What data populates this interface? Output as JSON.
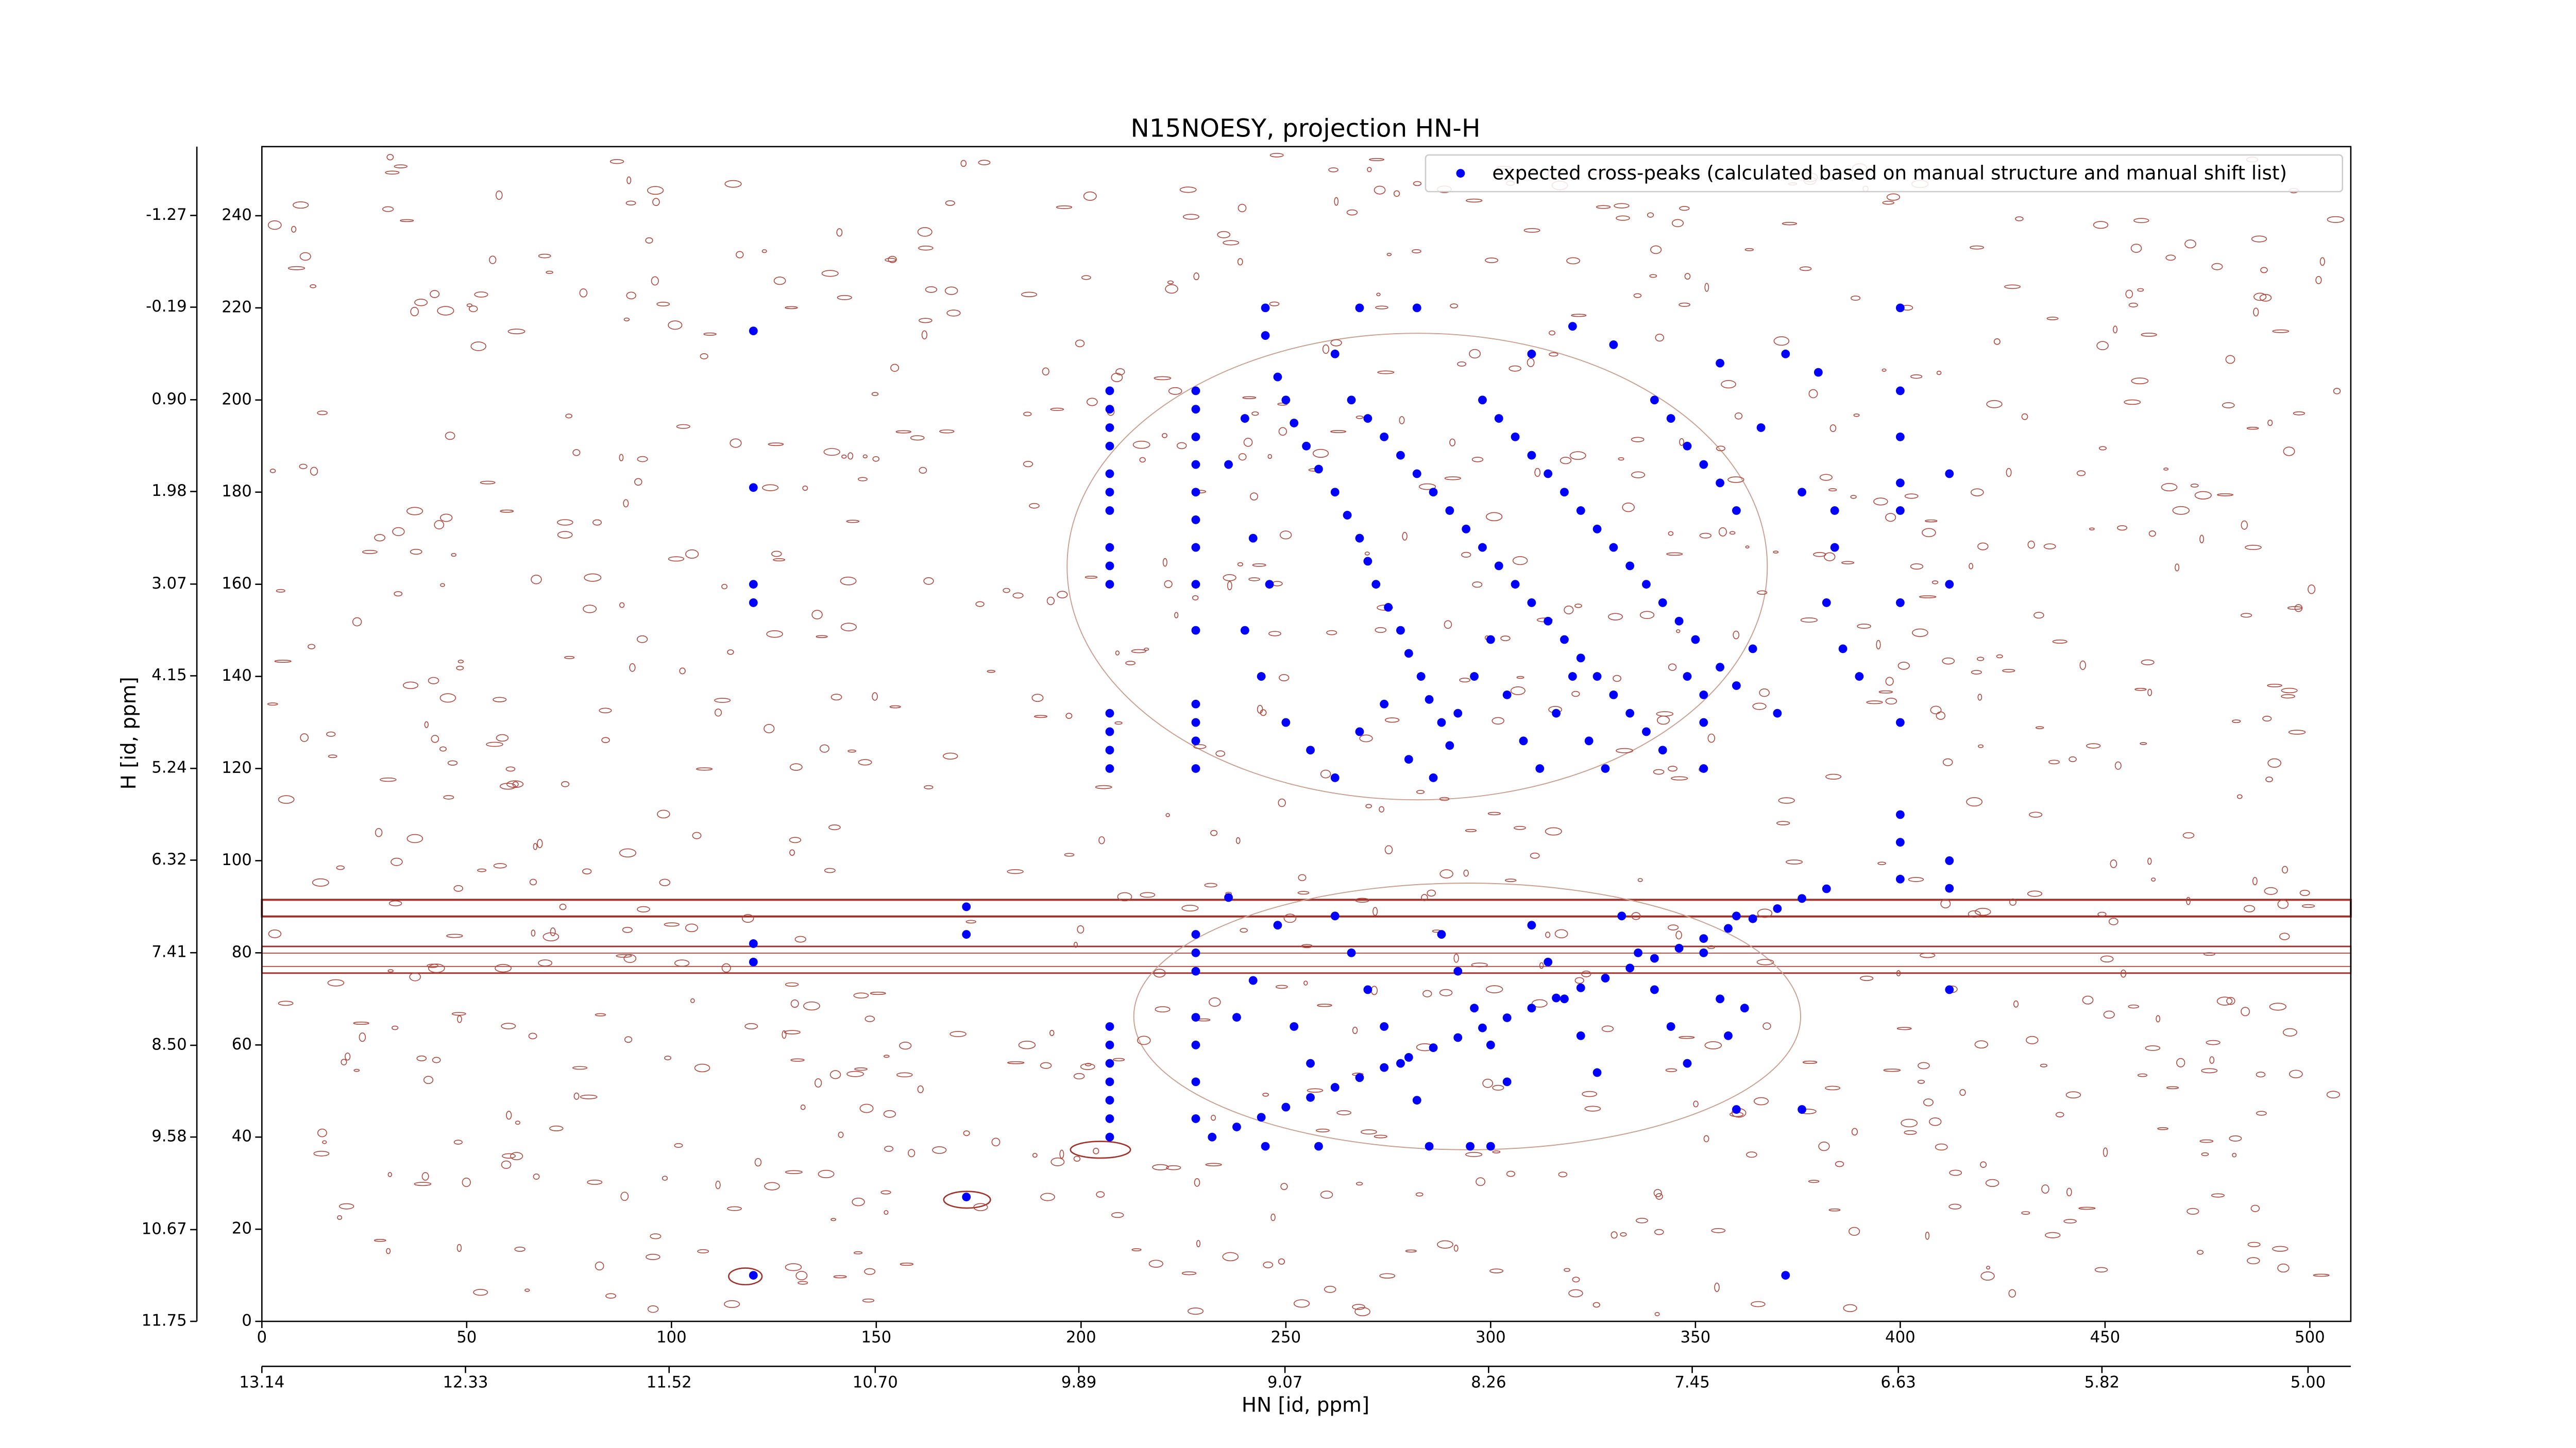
{
  "chart_data": {
    "type": "scatter",
    "title": "N15NOESY, projection HN-H",
    "x_label": "HN [id, ppm]",
    "y_label": "H [id, ppm]",
    "xlim": [
      0,
      510
    ],
    "xticks": [
      0,
      50,
      100,
      150,
      200,
      250,
      300,
      350,
      400,
      450,
      500
    ],
    "ylim": [
      0,
      255
    ],
    "yticks": [
      0,
      20,
      40,
      60,
      80,
      100,
      120,
      140,
      160,
      180,
      200,
      220,
      240
    ],
    "x2lim": [
      13.14,
      4.83
    ],
    "x2ticks": [
      13.14,
      12.33,
      11.52,
      {
        "value": 10.7,
        "label": "10.70"
      },
      9.89,
      9.07,
      8.26,
      7.45,
      6.63,
      5.82,
      {
        "value": 5,
        "label": "5.00"
      }
    ],
    "y2lim": [
      11.75,
      -2.08
    ],
    "y2ticks": [
      11.75,
      10.67,
      9.58,
      {
        "value": 8.5,
        "label": "8.50"
      },
      7.41,
      6.32,
      5.24,
      4.15,
      3.07,
      1.98,
      {
        "value": 0.9,
        "label": "0.90"
      },
      -0.19,
      -1.27
    ],
    "legend": "upper right",
    "series": [
      {
        "name": "expected cross-peaks (calculated based on manual structure and manual shift list)",
        "color": "#0000ff",
        "x": [
          120,
          120,
          120,
          120,
          120,
          120,
          120,
          172,
          172,
          172,
          207,
          207,
          207,
          207,
          207,
          207,
          207,
          207,
          207,
          207,
          207,
          207,
          207,
          207,
          207,
          207,
          207,
          207,
          207,
          207,
          207,
          228,
          228,
          228,
          228,
          228,
          228,
          228,
          228,
          228,
          228,
          228,
          228,
          228,
          228,
          228,
          228,
          228,
          228,
          228,
          228,
          400,
          400,
          400,
          400,
          400,
          400,
          400,
          400,
          400,
          400,
          412,
          412,
          412,
          412,
          412,
          372,
          362,
          360,
          352,
          352,
          376,
          245,
          245,
          248,
          250,
          252,
          255,
          258,
          262,
          265,
          268,
          270,
          272,
          275,
          278,
          280,
          283,
          285,
          288,
          290,
          262,
          266,
          270,
          274,
          278,
          282,
          286,
          290,
          294,
          298,
          302,
          306,
          310,
          314,
          318,
          322,
          326,
          330,
          334,
          338,
          342,
          298,
          302,
          306,
          310,
          314,
          318,
          322,
          326,
          330,
          334,
          338,
          342,
          346,
          350,
          340,
          344,
          348,
          352,
          356,
          360,
          348,
          352,
          356,
          360,
          364,
          370,
          240,
          236,
          242,
          246,
          240,
          244,
          250,
          256,
          262,
          268,
          274,
          280,
          286,
          292,
          296,
          300,
          304,
          308,
          312,
          316,
          320,
          324,
          328,
          310,
          320,
          330,
          282,
          268,
          356,
          366,
          372,
          380,
          376,
          384,
          384,
          382,
          386,
          390,
          245,
          258,
          285,
          295,
          300,
          262,
          266,
          270,
          274,
          278,
          282,
          288,
          292,
          296,
          300,
          304,
          310,
          314,
          318,
          322,
          326,
          332,
          336,
          340,
          344,
          348,
          352,
          356,
          358,
          360,
          236,
          248,
          252,
          256,
          242,
          238,
          232,
          238,
          244,
          250,
          256,
          262,
          268,
          274,
          280,
          286,
          292,
          298,
          304,
          310,
          316,
          322,
          328,
          334,
          340,
          346,
          352,
          358,
          364,
          370,
          376,
          382
        ],
        "values": [
          215,
          181,
          160,
          156,
          82,
          78,
          10,
          27,
          84,
          90,
          202,
          198,
          194,
          190,
          184,
          180,
          176,
          168,
          164,
          160,
          132,
          128,
          124,
          120,
          64,
          60,
          56,
          52,
          48,
          44,
          40,
          202,
          198,
          192,
          186,
          180,
          174,
          168,
          160,
          150,
          134,
          130,
          126,
          120,
          84,
          80,
          76,
          66,
          60,
          52,
          44,
          220,
          202,
          192,
          182,
          176,
          156,
          130,
          110,
          104,
          96,
          184,
          160,
          100,
          94,
          72,
          10,
          68,
          46,
          120,
          130,
          46,
          220,
          214,
          205,
          200,
          195,
          190,
          185,
          180,
          175,
          170,
          165,
          160,
          155,
          150,
          145,
          140,
          135,
          130,
          125,
          210,
          200,
          196,
          192,
          188,
          184,
          180,
          176,
          172,
          168,
          164,
          160,
          156,
          152,
          148,
          144,
          140,
          136,
          132,
          128,
          124,
          200,
          196,
          192,
          188,
          184,
          180,
          176,
          172,
          168,
          164,
          160,
          156,
          152,
          148,
          200,
          196,
          190,
          186,
          182,
          176,
          140,
          136,
          142,
          138,
          146,
          132,
          196,
          186,
          170,
          160,
          150,
          140,
          130,
          124,
          118,
          128,
          134,
          122,
          118,
          132,
          140,
          148,
          136,
          126,
          120,
          132,
          140,
          126,
          120,
          210,
          216,
          212,
          220,
          220,
          208,
          194,
          210,
          206,
          180,
          176,
          168,
          156,
          146,
          140,
          38,
          38,
          38,
          38,
          38,
          88,
          80,
          72,
          64,
          56,
          48,
          84,
          76,
          68,
          60,
          52,
          86,
          78,
          70,
          62,
          54,
          88,
          80,
          72,
          64,
          56,
          80,
          70,
          62,
          88,
          92,
          86,
          64,
          56,
          74,
          66,
          40,
          42.2,
          44.3,
          46.5,
          48.6,
          50.8,
          52.9,
          55.1,
          57.3,
          59.4,
          61.6,
          63.7,
          65.9,
          68,
          70.2,
          72.4,
          74.5,
          76.7,
          78.8,
          81,
          83.1,
          85.3,
          87.4,
          89.6,
          91.8,
          93.9
        ]
      }
    ]
  }
}
